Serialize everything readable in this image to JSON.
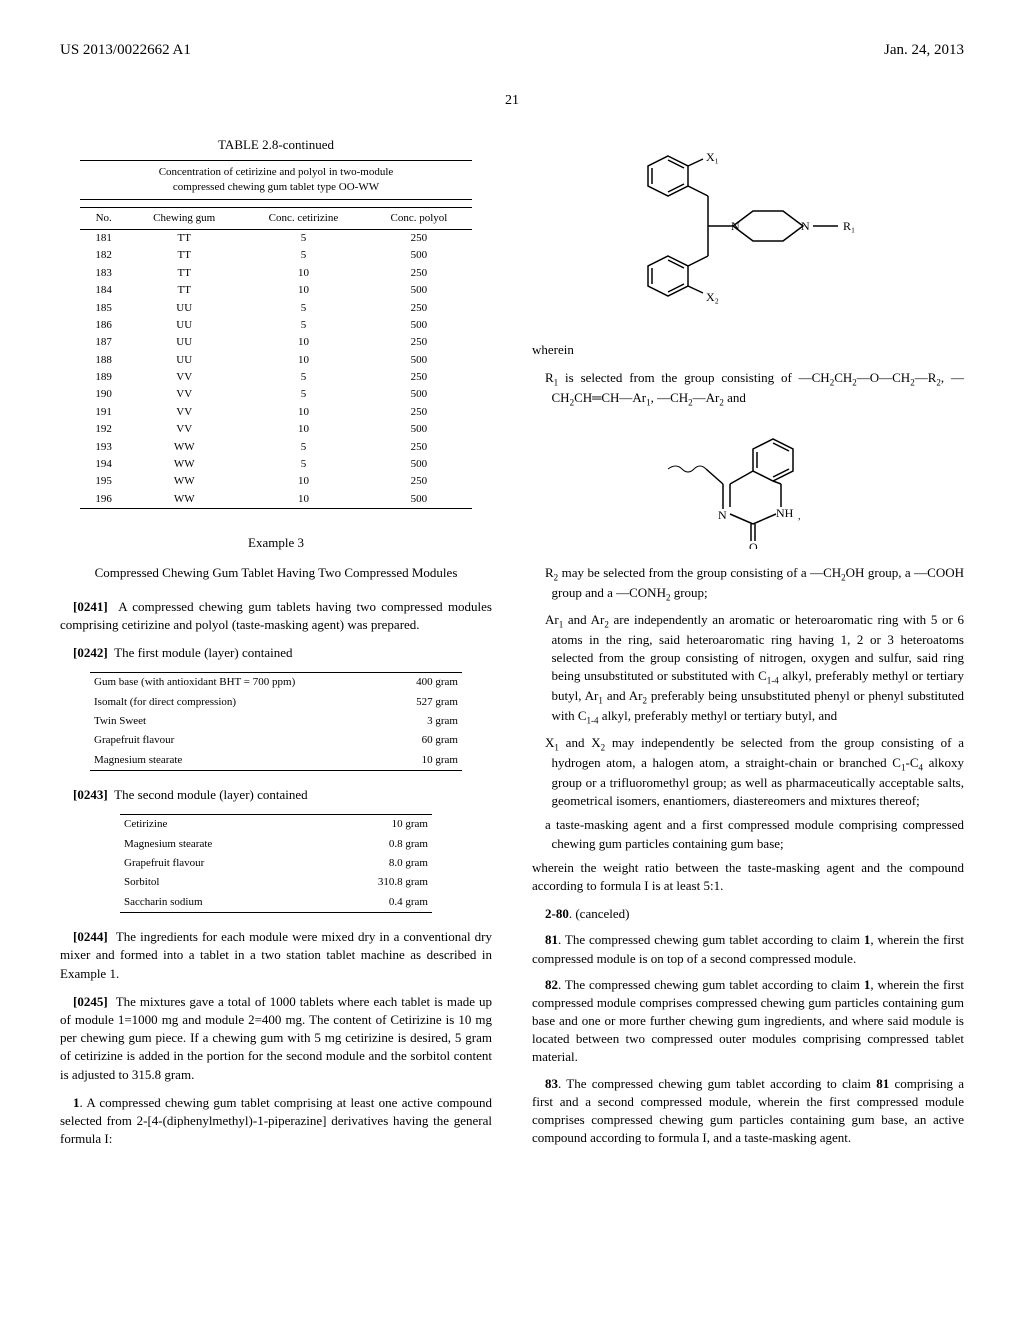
{
  "header": {
    "pub_number": "US 2013/0022662 A1",
    "date": "Jan. 24, 2013",
    "page_number": "21"
  },
  "table28": {
    "title": "TABLE 2.8-continued",
    "subtitle_line1": "Concentration of cetirizine and polyol in two-module",
    "subtitle_line2": "compressed chewing gum tablet type OO-WW",
    "headers": [
      "No.",
      "Chewing gum",
      "Conc. cetirizine",
      "Conc. polyol"
    ],
    "rows": [
      [
        "181",
        "TT",
        "5",
        "250"
      ],
      [
        "182",
        "TT",
        "5",
        "500"
      ],
      [
        "183",
        "TT",
        "10",
        "250"
      ],
      [
        "184",
        "TT",
        "10",
        "500"
      ],
      [
        "185",
        "UU",
        "5",
        "250"
      ],
      [
        "186",
        "UU",
        "5",
        "500"
      ],
      [
        "187",
        "UU",
        "10",
        "250"
      ],
      [
        "188",
        "UU",
        "10",
        "500"
      ],
      [
        "189",
        "VV",
        "5",
        "250"
      ],
      [
        "190",
        "VV",
        "5",
        "500"
      ],
      [
        "191",
        "VV",
        "10",
        "250"
      ],
      [
        "192",
        "VV",
        "10",
        "500"
      ],
      [
        "193",
        "WW",
        "5",
        "250"
      ],
      [
        "194",
        "WW",
        "5",
        "500"
      ],
      [
        "195",
        "WW",
        "10",
        "250"
      ],
      [
        "196",
        "WW",
        "10",
        "500"
      ]
    ]
  },
  "example3": {
    "heading": "Example 3",
    "subtitle": "Compressed Chewing Gum Tablet Having Two Compressed Modules"
  },
  "paragraphs": {
    "p0241_num": "[0241]",
    "p0241": "A compressed chewing gum tablets having two compressed modules comprising cetirizine and polyol (taste-masking agent) was prepared.",
    "p0242_num": "[0242]",
    "p0242": "The first module (layer) contained",
    "p0243_num": "[0243]",
    "p0243": "The second module (layer) contained",
    "p0244_num": "[0244]",
    "p0244": "The ingredients for each module were mixed dry in a conventional dry mixer and formed into a tablet in a two station tablet machine as described in Example 1.",
    "p0245_num": "[0245]",
    "p0245": "The mixtures gave a total of 1000 tablets where each tablet is made up of module 1=1000 mg and module 2=400 mg. The content of Cetirizine is 10 mg per chewing gum piece. If a chewing gum with 5 mg cetirizine is desired, 5 gram of cetirizine is added in the portion for the second module and the sorbitol content is adjusted to 315.8 gram."
  },
  "module1": {
    "rows": [
      [
        "Gum base (with antioxidant BHT = 700 ppm)",
        "400 gram"
      ],
      [
        "Isomalt (for direct compression)",
        "527 gram"
      ],
      [
        "Twin Sweet",
        "3 gram"
      ],
      [
        "Grapefruit flavour",
        "60 gram"
      ],
      [
        "Magnesium stearate",
        "10 gram"
      ]
    ]
  },
  "module2": {
    "rows": [
      [
        "Cetirizine",
        "10 gram"
      ],
      [
        "Magnesium stearate",
        "0.8 gram"
      ],
      [
        "Grapefruit flavour",
        "8.0 gram"
      ],
      [
        "Sorbitol",
        "310.8 gram"
      ],
      [
        "Saccharin sodium",
        "0.4 gram"
      ]
    ]
  },
  "claims": {
    "c1_num": "1",
    "c1_text": ". A compressed chewing gum tablet comprising at least one active compound selected from 2-[4-(diphenylmethyl)-1-piperazine] derivatives having the general formula I:",
    "wherein": "wherein",
    "r1_text": "R₁ is selected from the group consisting of —CH₂CH₂—O—CH₂—R₂, —CH₂CH═CH—Ar₁, —CH₂—Ar₂ and",
    "r2_text": "R₂ may be selected from the group consisting of a —CH₂OH group, a —COOH group and a —CONH₂ group;",
    "ar_text": "Ar₁ and Ar₂ are independently an aromatic or heteroaromatic ring with 5 or 6 atoms in the ring, said heteroaromatic ring having 1, 2 or 3 heteroatoms selected from the group consisting of nitrogen, oxygen and sulfur, said ring being unsubstituted or substituted with C₁₋₄ alkyl, preferably methyl or tertiary butyl, Ar₁ and Ar₂ preferably being unsubstituted phenyl or phenyl substituted with C₁₋₄ alkyl, preferably methyl or tertiary butyl, and",
    "x_text": "X₁ and X₂ may independently be selected from the group consisting of a hydrogen atom, a halogen atom, a straight-chain or branched C₁-C₄ alkoxy group or a trifluoromethyl group; as well as pharmaceutically acceptable salts, geometrical isomers, enantiomers, diastereomers and mixtures thereof;",
    "taste_text": "a taste-masking agent and a first compressed module comprising compressed chewing gum particles containing gum base;",
    "ratio_text": "wherein the weight ratio between the taste-masking agent and the compound according to formula I is at least 5:1.",
    "c2_80_num": "2-80",
    "c2_80_text": ". (canceled)",
    "c81_num": "81",
    "c81_text": ". The compressed chewing gum tablet according to claim 1, wherein the first compressed module is on top of a second compressed module.",
    "c82_num": "82",
    "c82_text": ". The compressed chewing gum tablet according to claim 1, wherein the first compressed module comprises compressed chewing gum particles containing gum base and one or more further chewing gum ingredients, and where said module is located between two compressed outer modules comprising compressed tablet material.",
    "c83_num": "83",
    "c83_text": ". The compressed chewing gum tablet according to claim 81 comprising a first and a second compressed module, wherein the first compressed module comprises compressed chewing gum particles containing gum base, an active compound according to formula I, and a taste-masking agent."
  },
  "styling": {
    "text_color": "#000000",
    "bg_color": "#ffffff",
    "rule_width": 1.5
  }
}
